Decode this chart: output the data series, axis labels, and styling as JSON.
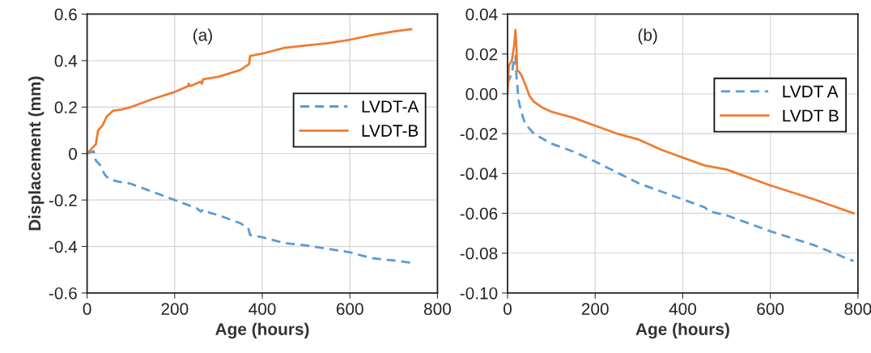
{
  "chart_data": [
    {
      "type": "line",
      "annotations": [
        "(a)"
      ],
      "xlabel": "Age (hours)",
      "ylabel": "Displacement (mm)",
      "xlim": [
        0,
        800
      ],
      "xticks": [
        0,
        200,
        400,
        600,
        800
      ],
      "ylim": [
        -0.6,
        0.6
      ],
      "yticks": [
        {
          "value": -0.6,
          "label": "-0.6"
        },
        {
          "value": -0.4,
          "label": "-0.4"
        },
        {
          "value": -0.2,
          "label": "-0.2"
        },
        {
          "value": 0,
          "label": "0"
        },
        {
          "value": 0.2,
          "label": "0.2"
        },
        {
          "value": 0.4,
          "label": "0.4"
        },
        {
          "value": 0.6,
          "label": "0.6"
        }
      ],
      "grid": true,
      "legend": "right",
      "series": [
        {
          "name": "LVDT-A",
          "color": "#5b9bd5",
          "line_style": "dashed",
          "x": [
            0,
            15,
            20,
            30,
            40,
            50,
            70,
            100,
            150,
            200,
            250,
            260,
            265,
            280,
            300,
            350,
            368,
            372,
            400,
            450,
            500,
            550,
            600,
            650,
            700,
            740
          ],
          "values": [
            0,
            0.01,
            -0.03,
            -0.05,
            -0.09,
            -0.11,
            -0.12,
            -0.13,
            -0.165,
            -0.2,
            -0.235,
            -0.25,
            -0.24,
            -0.255,
            -0.265,
            -0.3,
            -0.32,
            -0.35,
            -0.36,
            -0.385,
            -0.395,
            -0.41,
            -0.425,
            -0.45,
            -0.46,
            -0.47
          ]
        },
        {
          "name": "LVDT-B",
          "color": "#ed7d31",
          "line_style": "solid",
          "x": [
            0,
            10,
            20,
            25,
            35,
            45,
            60,
            80,
            100,
            150,
            200,
            230,
            232,
            235,
            260,
            262,
            265,
            300,
            350,
            370,
            372,
            400,
            450,
            500,
            550,
            600,
            650,
            700,
            740
          ],
          "values": [
            0,
            0.02,
            0.04,
            0.1,
            0.12,
            0.16,
            0.185,
            0.19,
            0.2,
            0.235,
            0.265,
            0.29,
            0.3,
            0.29,
            0.31,
            0.3,
            0.32,
            0.33,
            0.36,
            0.385,
            0.42,
            0.43,
            0.455,
            0.465,
            0.475,
            0.49,
            0.51,
            0.525,
            0.535
          ]
        }
      ]
    },
    {
      "type": "line",
      "annotations": [
        "(b)"
      ],
      "xlabel": "Age (hours)",
      "xlim": [
        0,
        800
      ],
      "xticks": [
        0,
        200,
        400,
        600,
        800
      ],
      "ylim": [
        -0.1,
        0.04
      ],
      "yticks": [
        {
          "value": -0.1,
          "label": "-0.10"
        },
        {
          "value": -0.08,
          "label": "-0.08"
        },
        {
          "value": -0.06,
          "label": "-0.06"
        },
        {
          "value": -0.04,
          "label": "-0.04"
        },
        {
          "value": -0.02,
          "label": "-0.02"
        },
        {
          "value": 0,
          "label": "0.00"
        },
        {
          "value": 0.02,
          "label": "0.02"
        },
        {
          "value": 0.04,
          "label": "0.04"
        }
      ],
      "grid": true,
      "legend": "upper right",
      "series": [
        {
          "name": "LVDT A",
          "color": "#5b9bd5",
          "line_style": "dashed",
          "x": [
            0,
            5,
            10,
            15,
            18,
            20,
            25,
            30,
            40,
            60,
            100,
            150,
            200,
            300,
            400,
            450,
            460,
            500,
            600,
            700,
            790
          ],
          "values": [
            0.005,
            0.008,
            0.01,
            0.018,
            0.019,
            0.01,
            -0.003,
            -0.008,
            -0.015,
            -0.02,
            -0.025,
            -0.029,
            -0.034,
            -0.045,
            -0.053,
            -0.057,
            -0.059,
            -0.061,
            -0.069,
            -0.076,
            -0.084
          ]
        },
        {
          "name": "LVDT B",
          "color": "#ed7d31",
          "line_style": "solid",
          "x": [
            0,
            3,
            10,
            15,
            18,
            20,
            22,
            30,
            40,
            50,
            60,
            80,
            100,
            150,
            200,
            250,
            300,
            350,
            400,
            450,
            500,
            600,
            700,
            790
          ],
          "values": [
            0,
            0.014,
            0.017,
            0.024,
            0.032,
            0.025,
            0.012,
            0.01,
            0.005,
            -0.001,
            -0.004,
            -0.007,
            -0.009,
            -0.012,
            -0.016,
            -0.02,
            -0.023,
            -0.028,
            -0.032,
            -0.036,
            -0.038,
            -0.046,
            -0.053,
            -0.06
          ]
        }
      ]
    }
  ]
}
